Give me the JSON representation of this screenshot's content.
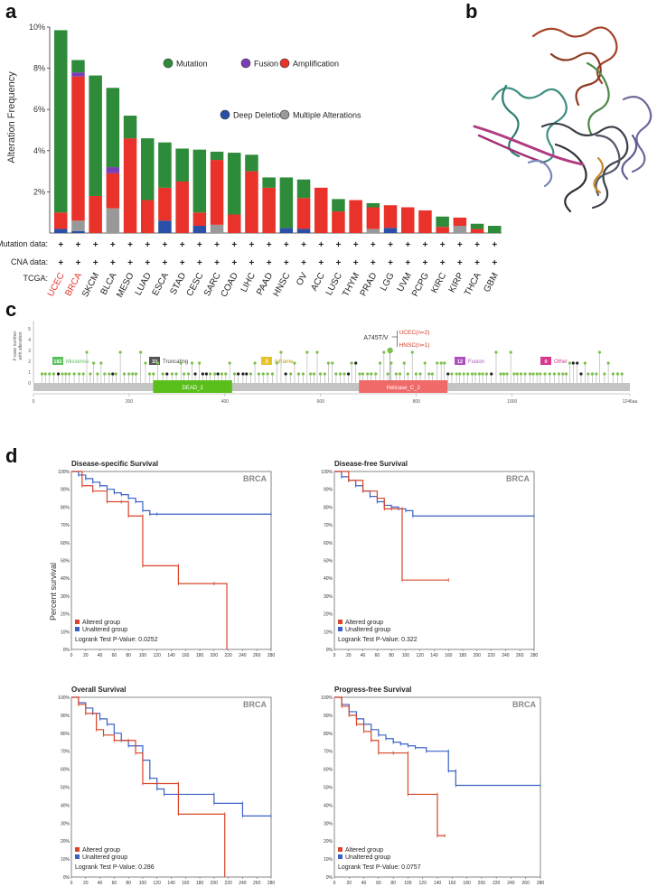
{
  "panel_labels": {
    "a": "a",
    "b": "b",
    "c": "c",
    "d": "d"
  },
  "panel_a": {
    "ylabel": "Alteration Frequency",
    "yticks": [
      "2%",
      "4%",
      "6%",
      "8%",
      "10%"
    ],
    "legend": [
      {
        "name": "Mutation",
        "color": "#2e8b3a"
      },
      {
        "name": "Fusion",
        "color": "#7b3fb5"
      },
      {
        "name": "Amplification",
        "color": "#e8322a"
      },
      {
        "name": "Deep Deletion",
        "color": "#2a4fa8"
      },
      {
        "name": "Multiple Alterations",
        "color": "#999999"
      }
    ],
    "row_labels": {
      "mutation": "Mutation data:",
      "cna": "CNA data:",
      "tcga": "TCGA:"
    },
    "plus": "+",
    "highlight_color": "#e8322a"
  },
  "chart_data": {
    "type": "bar",
    "stacked": true,
    "ylabel": "Alteration Frequency",
    "ylim": [
      0,
      10
    ],
    "unit": "%",
    "categories": [
      "UCEC",
      "BRCA",
      "SKCM",
      "BLCA",
      "MESO",
      "LUAD",
      "ESCA",
      "STAD",
      "CESC",
      "SARC",
      "COAD",
      "LIHC",
      "PAAD",
      "HNSC",
      "OV",
      "ACC",
      "LUSC",
      "THYM",
      "PRAD",
      "LGG",
      "UVM",
      "PCPG",
      "KIRC",
      "KIRP",
      "THCA",
      "GBM"
    ],
    "highlighted": [
      "UCEC",
      "BRCA"
    ],
    "series": [
      {
        "name": "Deep Deletion",
        "color": "#2a4fa8",
        "values": [
          0.2,
          0.1,
          0,
          0,
          0,
          0,
          0.6,
          0,
          0.35,
          0,
          0,
          0,
          0,
          0.25,
          0.2,
          0,
          0,
          0,
          0,
          0.25,
          0,
          0,
          0,
          0,
          0,
          0
        ]
      },
      {
        "name": "Multiple Alterations",
        "color": "#999999",
        "values": [
          0,
          0.5,
          0,
          1.2,
          0,
          0,
          0,
          0,
          0,
          0.4,
          0,
          0,
          0,
          0,
          0,
          0,
          0,
          0,
          0.2,
          0,
          0,
          0,
          0,
          0.35,
          0,
          0
        ]
      },
      {
        "name": "Amplification",
        "color": "#e8322a",
        "values": [
          0.8,
          7.0,
          1.8,
          1.7,
          4.6,
          1.6,
          1.6,
          2.5,
          0.65,
          3.15,
          0.9,
          3.0,
          2.2,
          0,
          1.5,
          2.2,
          1.05,
          1.6,
          1.05,
          1.1,
          1.25,
          1.1,
          0.3,
          0.4,
          0.2,
          0
        ]
      },
      {
        "name": "Fusion",
        "color": "#7b3fb5",
        "values": [
          0,
          0.2,
          0,
          0.3,
          0,
          0,
          0,
          0,
          0,
          0,
          0,
          0,
          0,
          0,
          0,
          0,
          0,
          0,
          0,
          0,
          0,
          0,
          0,
          0,
          0,
          0
        ]
      },
      {
        "name": "Mutation",
        "color": "#2e8b3a",
        "values": [
          8.85,
          0.6,
          5.85,
          3.85,
          1.1,
          3.0,
          2.2,
          1.6,
          3.05,
          0.4,
          3.0,
          0.8,
          0.5,
          2.45,
          0.9,
          0,
          0.6,
          0,
          0.2,
          0,
          0,
          0,
          0.5,
          0,
          0.25,
          0.35
        ]
      }
    ]
  },
  "panel_c": {
    "ylabel_line1": "# case number",
    "ylabel_line2": "with alteration",
    "yticks": [
      "0",
      "1",
      "2",
      "3",
      "4",
      "5"
    ],
    "xticks": [
      "0",
      "200",
      "400",
      "600",
      "800",
      "1000",
      "1246aa"
    ],
    "length": 1246,
    "badges": [
      {
        "count": "182",
        "label": "Missense",
        "color": "#5bbf5b",
        "text_color": "#5bbf5b"
      },
      {
        "count": "33",
        "label": "Truncating",
        "color": "#555555",
        "text_color": "#444444"
      },
      {
        "count": "3",
        "label": "Inframe",
        "color": "#e6c32a",
        "text_color": "#b59a10"
      },
      {
        "count": "12",
        "label": "Fusion",
        "color": "#b04fc2",
        "text_color": "#b04fc2"
      },
      {
        "count": "0",
        "label": "Other",
        "color": "#d63a8e",
        "text_color": "#d63a8e"
      }
    ],
    "domains": [
      {
        "name": "DEAD_2",
        "start": 250,
        "end": 415,
        "color": "#5bbf1b"
      },
      {
        "name": "Helicase_C_2",
        "start": 680,
        "end": 865,
        "color": "#f06a6a"
      }
    ],
    "hotspot": {
      "label": "A745T/V",
      "position": 745,
      "count": 2.5
    },
    "hotspot_notes": [
      "UCEC(n=2)",
      "HNSC(n=1)"
    ]
  },
  "panel_d": {
    "ylabel": "Percent survival",
    "cancer": "BRCA",
    "legend_altered": "Altered group",
    "legend_unaltered": "Unaltered group",
    "altered_color": "#d8452b",
    "unaltered_color": "#3a62c4",
    "yticks": [
      "0%",
      "10%",
      "20%",
      "30%",
      "40%",
      "50%",
      "60%",
      "70%",
      "80%",
      "90%",
      "100%"
    ],
    "xticks": [
      "0",
      "20",
      "40",
      "60",
      "80",
      "100",
      "120",
      "140",
      "160",
      "180",
      "200",
      "220",
      "240",
      "260",
      "280"
    ],
    "plots": [
      {
        "title": "Disease-specific Survival",
        "pvalue": "Logrank Test P-Value: 0.0252",
        "unaltered": [
          [
            0,
            100
          ],
          [
            10,
            98
          ],
          [
            20,
            96
          ],
          [
            30,
            94
          ],
          [
            40,
            92
          ],
          [
            50,
            90
          ],
          [
            60,
            88
          ],
          [
            70,
            87
          ],
          [
            80,
            85
          ],
          [
            90,
            83
          ],
          [
            100,
            78
          ],
          [
            110,
            76
          ],
          [
            120,
            76
          ],
          [
            280,
            76
          ]
        ],
        "altered": [
          [
            0,
            100
          ],
          [
            15,
            92
          ],
          [
            30,
            89
          ],
          [
            50,
            83
          ],
          [
            70,
            83
          ],
          [
            80,
            75
          ],
          [
            100,
            75
          ],
          [
            100,
            47
          ],
          [
            150,
            47
          ],
          [
            150,
            37
          ],
          [
            200,
            37
          ],
          [
            218,
            0
          ]
        ]
      },
      {
        "title": "Disease-free Survival",
        "pvalue": "Logrank Test P-Value: 0.322",
        "unaltered": [
          [
            0,
            100
          ],
          [
            10,
            97
          ],
          [
            20,
            95
          ],
          [
            30,
            92
          ],
          [
            40,
            89
          ],
          [
            50,
            86
          ],
          [
            60,
            83
          ],
          [
            70,
            81
          ],
          [
            80,
            80
          ],
          [
            90,
            79
          ],
          [
            100,
            78
          ],
          [
            110,
            75
          ],
          [
            280,
            75
          ]
        ],
        "altered": [
          [
            0,
            100
          ],
          [
            20,
            95
          ],
          [
            40,
            89
          ],
          [
            60,
            85
          ],
          [
            70,
            79
          ],
          [
            80,
            79
          ],
          [
            95,
            79
          ],
          [
            95,
            39
          ],
          [
            160,
            39
          ]
        ]
      },
      {
        "title": "Overall Survival",
        "pvalue": "Logrank Test P-Value: 0.286",
        "unaltered": [
          [
            0,
            100
          ],
          [
            10,
            97
          ],
          [
            20,
            94
          ],
          [
            30,
            91
          ],
          [
            40,
            88
          ],
          [
            50,
            85
          ],
          [
            60,
            80
          ],
          [
            70,
            76
          ],
          [
            80,
            73
          ],
          [
            100,
            65
          ],
          [
            110,
            55
          ],
          [
            120,
            49
          ],
          [
            130,
            46
          ],
          [
            200,
            46
          ],
          [
            200,
            41
          ],
          [
            240,
            41
          ],
          [
            240,
            34
          ],
          [
            280,
            34
          ]
        ],
        "altered": [
          [
            0,
            100
          ],
          [
            10,
            96
          ],
          [
            20,
            91
          ],
          [
            35,
            82
          ],
          [
            45,
            79
          ],
          [
            60,
            76
          ],
          [
            80,
            76
          ],
          [
            90,
            69
          ],
          [
            100,
            66
          ],
          [
            100,
            52
          ],
          [
            150,
            52
          ],
          [
            150,
            35
          ],
          [
            215,
            35
          ],
          [
            215,
            0
          ]
        ]
      },
      {
        "title": "Progress-free Survival",
        "pvalue": "Logrank Test P-Value: 0.0757",
        "unaltered": [
          [
            0,
            100
          ],
          [
            10,
            96
          ],
          [
            20,
            92
          ],
          [
            30,
            88
          ],
          [
            40,
            85
          ],
          [
            50,
            82
          ],
          [
            60,
            79
          ],
          [
            70,
            77
          ],
          [
            80,
            75
          ],
          [
            90,
            74
          ],
          [
            100,
            73
          ],
          [
            110,
            72
          ],
          [
            125,
            70
          ],
          [
            155,
            70
          ],
          [
            155,
            59
          ],
          [
            165,
            59
          ],
          [
            165,
            51
          ],
          [
            280,
            51
          ]
        ],
        "altered": [
          [
            0,
            100
          ],
          [
            10,
            95
          ],
          [
            20,
            90
          ],
          [
            30,
            85
          ],
          [
            40,
            81
          ],
          [
            50,
            76
          ],
          [
            60,
            69
          ],
          [
            80,
            69
          ],
          [
            100,
            69
          ],
          [
            100,
            46
          ],
          [
            140,
            46
          ],
          [
            140,
            23
          ],
          [
            150,
            23
          ]
        ]
      }
    ]
  }
}
